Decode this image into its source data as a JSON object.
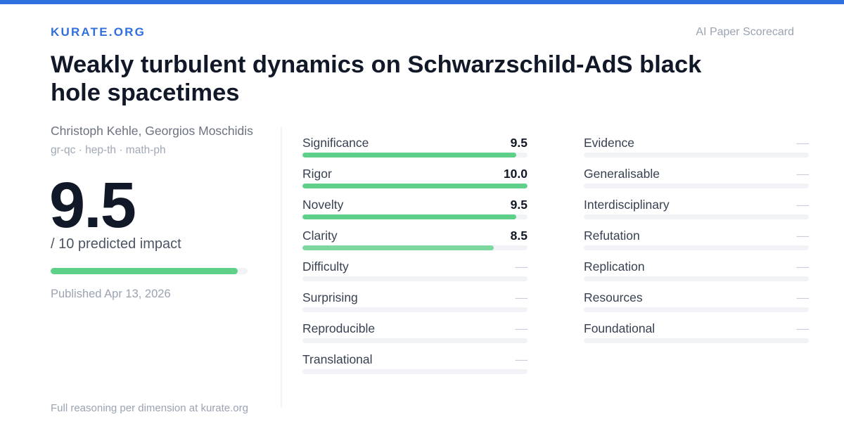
{
  "brand": "KURATE.ORG",
  "tagline": "AI Paper Scorecard",
  "paper": {
    "title": "Weakly turbulent dynamics on Schwarzschild-AdS black hole spacetimes",
    "authors": "Christoph Kehle, Georgios Moschidis",
    "categories": "gr-qc · hep-th · math-ph"
  },
  "overall": {
    "score": "9.5",
    "subtitle": "/ 10 predicted impact",
    "fraction": 0.95
  },
  "published": "Published Apr 13, 2026",
  "footer": "Full reasoning per dimension at kurate.org",
  "colors": {
    "brand": "#2f6fde",
    "bar_strong": "#5fd08a",
    "bar_medium": "#7dd8a0",
    "track": "#f1f3f6"
  },
  "dimensions_left": [
    {
      "label": "Significance",
      "value": "9.5",
      "fraction": 0.95
    },
    {
      "label": "Rigor",
      "value": "10.0",
      "fraction": 1.0
    },
    {
      "label": "Novelty",
      "value": "9.5",
      "fraction": 0.95
    },
    {
      "label": "Clarity",
      "value": "8.5",
      "fraction": 0.85
    },
    {
      "label": "Difficulty",
      "value": "—",
      "fraction": null
    },
    {
      "label": "Surprising",
      "value": "—",
      "fraction": null
    },
    {
      "label": "Reproducible",
      "value": "—",
      "fraction": null
    },
    {
      "label": "Translational",
      "value": "—",
      "fraction": null
    }
  ],
  "dimensions_right": [
    {
      "label": "Evidence",
      "value": "—",
      "fraction": null
    },
    {
      "label": "Generalisable",
      "value": "—",
      "fraction": null
    },
    {
      "label": "Interdisciplinary",
      "value": "—",
      "fraction": null
    },
    {
      "label": "Refutation",
      "value": "—",
      "fraction": null
    },
    {
      "label": "Replication",
      "value": "—",
      "fraction": null
    },
    {
      "label": "Resources",
      "value": "—",
      "fraction": null
    },
    {
      "label": "Foundational",
      "value": "—",
      "fraction": null
    }
  ]
}
